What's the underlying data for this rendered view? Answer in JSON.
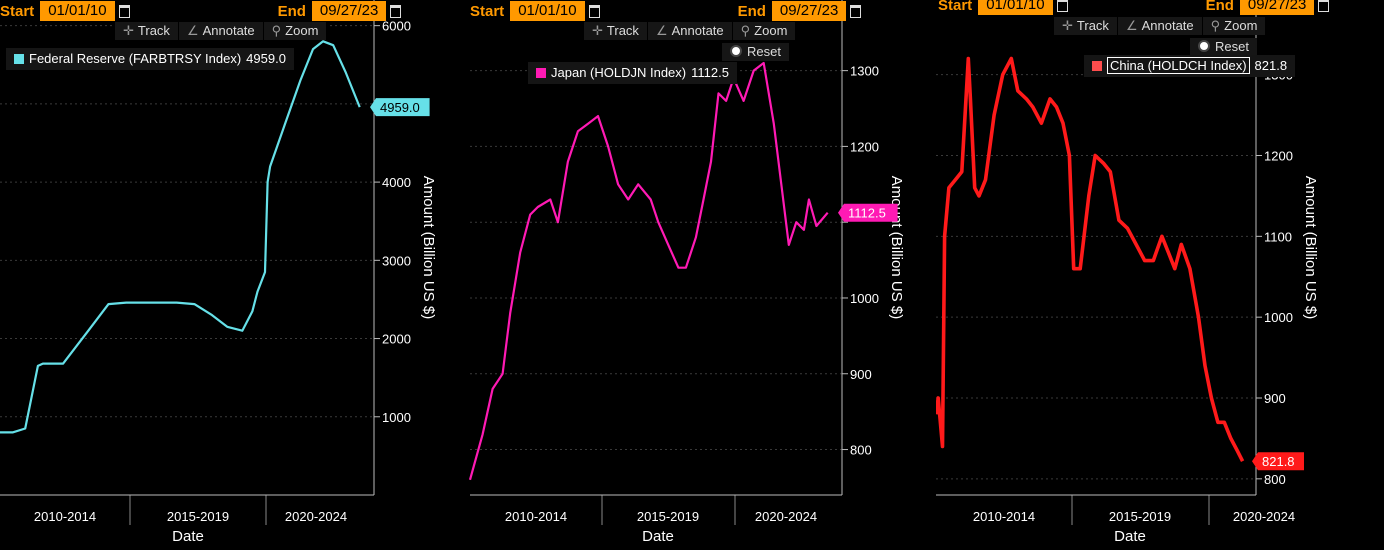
{
  "toolbar": {
    "start_label": "Start",
    "end_label": "End",
    "start_date": "01/01/10",
    "end_date": "09/27/23",
    "track": "Track",
    "annotate": "Annotate",
    "zoom": "Zoom",
    "reset": "Reset"
  },
  "chart_data": [
    {
      "type": "line",
      "title": "",
      "xlabel": "Date",
      "ylabel": "Amount (Billion US $)",
      "x_tick_labels": [
        "2010-2014",
        "2015-2019",
        "2020-2024"
      ],
      "y_ticks": [
        1000,
        2000,
        3000,
        4000,
        5000,
        6000
      ],
      "y_tick_labels": [
        "1000",
        "2000",
        "3000",
        "4000",
        "",
        "6000"
      ],
      "ylim": [
        0,
        6200
      ],
      "xlim": [
        2009.5,
        2024.0
      ],
      "grid": true,
      "legend_position": "top-left",
      "series": [
        {
          "name": "Federal Reserve (FARBTRSY Index)",
          "color": "#66e0e8",
          "last_value": "4959.0",
          "x": [
            2009.5,
            2010.0,
            2010.5,
            2011.0,
            2011.2,
            2012.0,
            2013.0,
            2013.8,
            2014.5,
            2015.5,
            2016.5,
            2017.2,
            2017.9,
            2018.5,
            2019.1,
            2019.5,
            2019.7,
            2020.0,
            2020.1,
            2020.2,
            2020.8,
            2021.4,
            2021.9,
            2022.3,
            2022.7,
            2023.2,
            2023.75
          ],
          "y": [
            800,
            800,
            850,
            1650,
            1680,
            1680,
            2100,
            2440,
            2460,
            2460,
            2460,
            2440,
            2300,
            2150,
            2100,
            2350,
            2600,
            2850,
            4000,
            4200,
            4750,
            5300,
            5700,
            5800,
            5750,
            5400,
            4959
          ]
        }
      ]
    },
    {
      "type": "line",
      "title": "",
      "xlabel": "Date",
      "ylabel": "Amount (Billion US $)",
      "x_tick_labels": [
        "2010-2014",
        "2015-2019",
        "2020-2024"
      ],
      "y_ticks": [
        800,
        900,
        1000,
        1100,
        1200,
        1300
      ],
      "y_tick_labels": [
        "800",
        "900",
        "1000",
        "",
        "1200",
        "1300"
      ],
      "ylim": [
        740,
        1380
      ],
      "xlim": [
        2009.5,
        2024.0
      ],
      "grid": true,
      "legend_position": "top-left",
      "series": [
        {
          "name": "Japan (HOLDJN Index)",
          "color": "#ff1ab4",
          "last_value": "1112.5",
          "x": [
            2009.5,
            2010.0,
            2010.4,
            2010.8,
            2011.1,
            2011.5,
            2011.9,
            2012.2,
            2012.7,
            2013.0,
            2013.4,
            2013.8,
            2014.2,
            2014.6,
            2015.0,
            2015.4,
            2015.8,
            2016.2,
            2016.7,
            2017.0,
            2017.4,
            2017.8,
            2018.1,
            2018.5,
            2018.8,
            2019.1,
            2019.4,
            2019.7,
            2020.0,
            2020.4,
            2020.8,
            2021.2,
            2021.6,
            2021.9,
            2022.2,
            2022.5,
            2022.8,
            2023.0,
            2023.3,
            2023.75
          ],
          "y": [
            760,
            820,
            880,
            900,
            980,
            1060,
            1110,
            1120,
            1130,
            1100,
            1180,
            1220,
            1230,
            1240,
            1200,
            1150,
            1130,
            1150,
            1130,
            1100,
            1070,
            1040,
            1040,
            1080,
            1130,
            1180,
            1270,
            1260,
            1290,
            1260,
            1300,
            1310,
            1230,
            1150,
            1070,
            1100,
            1090,
            1130,
            1095,
            1112.5
          ]
        }
      ]
    },
    {
      "type": "line",
      "title": "",
      "xlabel": "Date",
      "ylabel": "Amount (Billion US $)",
      "x_tick_labels": [
        "2010-2014",
        "2015-2019",
        "2020-2024"
      ],
      "y_ticks": [
        800,
        900,
        1000,
        1100,
        1200,
        1300
      ],
      "y_tick_labels": [
        "800",
        "900",
        "1000",
        "1100",
        "1200",
        "1300"
      ],
      "ylim": [
        780,
        1380
      ],
      "xlim": [
        2009.5,
        2024.0
      ],
      "grid": true,
      "legend_position": "top-left",
      "series": [
        {
          "name": "China (HOLDCH Index)",
          "color": "#ff1a1a",
          "last_value": "821.8",
          "x": [
            2009.5,
            2009.6,
            2009.8,
            2009.9,
            2010.1,
            2010.4,
            2010.7,
            2011.0,
            2011.1,
            2011.3,
            2011.5,
            2011.8,
            2012.2,
            2012.6,
            2013.0,
            2013.3,
            2013.7,
            2014.0,
            2014.4,
            2014.8,
            2015.1,
            2015.4,
            2015.7,
            2015.9,
            2016.2,
            2016.6,
            2016.9,
            2017.3,
            2017.6,
            2018.0,
            2018.4,
            2018.8,
            2019.2,
            2019.6,
            2020.0,
            2020.3,
            2020.6,
            2020.9,
            2021.3,
            2021.7,
            2022.0,
            2022.3,
            2022.6,
            2022.9,
            2023.2,
            2023.5,
            2023.75
          ],
          "y": [
            880,
            900,
            840,
            1100,
            1160,
            1170,
            1180,
            1320,
            1270,
            1160,
            1150,
            1170,
            1250,
            1300,
            1320,
            1280,
            1270,
            1260,
            1240,
            1270,
            1260,
            1240,
            1200,
            1060,
            1060,
            1150,
            1200,
            1190,
            1180,
            1120,
            1110,
            1090,
            1070,
            1070,
            1100,
            1080,
            1060,
            1090,
            1060,
            1000,
            940,
            900,
            870,
            870,
            850,
            835,
            821.8
          ]
        }
      ]
    }
  ]
}
